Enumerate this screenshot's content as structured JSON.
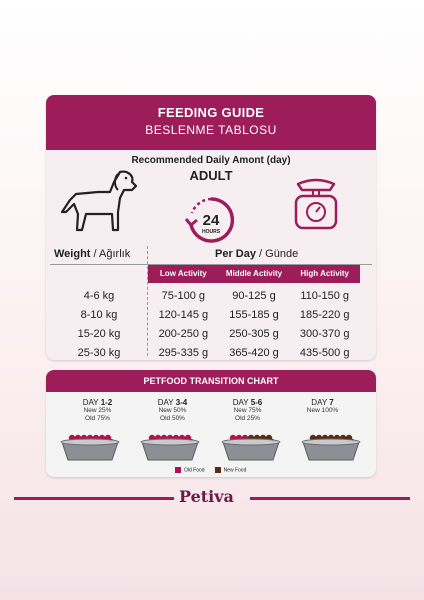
{
  "guide": {
    "title": "FEEDING GUIDE",
    "subtitle": "BESLENME TABLOSU",
    "recommended": "Recommended Daily Amont (day)",
    "category": "ADULT",
    "clock_number": "24",
    "clock_unit": "HOURS",
    "weight_label": "Weight",
    "weight_label_tr": "/ Ağırlık",
    "perday_label": "Per Day",
    "perday_label_tr": "/ Günde",
    "columns": [
      "Low Activity",
      "Middle Activity",
      "High Activity"
    ],
    "rows": [
      {
        "weight": "4-6 kg",
        "low": "75-100 g",
        "mid": "90-125 g",
        "high": "110-150 g"
      },
      {
        "weight": "8-10 kg",
        "low": "120-145 g",
        "mid": "155-185 g",
        "high": "185-220 g"
      },
      {
        "weight": "15-20 kg",
        "low": "200-250 g",
        "mid": "250-305 g",
        "high": "300-370 g"
      },
      {
        "weight": "25-30 kg",
        "low": "295-335 g",
        "mid": "365-420 g",
        "high": "435-500 g"
      }
    ]
  },
  "transition": {
    "title": "PETFOOD TRANSITION CHART",
    "days": [
      {
        "prefix": "DAY ",
        "range": "1-2",
        "line1": "New 25%",
        "line2": "Old 75%",
        "new_share": 0.25
      },
      {
        "prefix": "DAY ",
        "range": "3-4",
        "line1": "New 50%",
        "line2": "Old 50%",
        "new_share": 0.5
      },
      {
        "prefix": "DAY ",
        "range": "5-6",
        "line1": "New 75%",
        "line2": "Old 25%",
        "new_share": 0.75
      },
      {
        "prefix": "DAY ",
        "range": "7",
        "line1": "New 100%",
        "line2": "",
        "new_share": 1.0
      }
    ],
    "legend_old": "Old Food",
    "legend_new": "New Food",
    "colors": {
      "old": "#b0124f",
      "new": "#5b2a17"
    }
  },
  "brand": {
    "name": "Petiva"
  },
  "colors": {
    "accent": "#9c1d5a"
  }
}
